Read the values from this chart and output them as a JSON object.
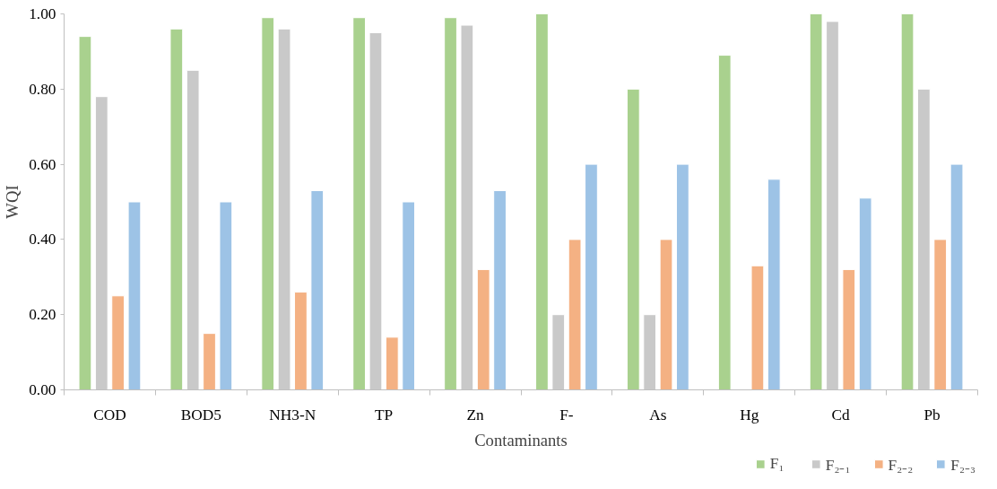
{
  "chart_data": {
    "type": "bar",
    "xlabel": "Contaminants",
    "ylabel": "WQI",
    "categories": [
      "COD",
      "BOD5",
      "NH3-N",
      "TP",
      "Zn",
      "F-",
      "As",
      "Hg",
      "Cd",
      "Pb"
    ],
    "series": [
      {
        "name": "F₁",
        "color": "#a9d18e",
        "values": [
          0.94,
          0.96,
          0.99,
          0.99,
          0.99,
          1.0,
          0.8,
          0.89,
          1.0,
          1.0
        ]
      },
      {
        "name": "F₂₋₁",
        "color": "#c9c9c9",
        "values": [
          0.78,
          0.85,
          0.96,
          0.95,
          0.97,
          0.2,
          0.2,
          null,
          0.98,
          0.8
        ]
      },
      {
        "name": "F₂₋₂",
        "color": "#f4b183",
        "values": [
          0.25,
          0.15,
          0.26,
          0.14,
          0.32,
          0.4,
          0.4,
          0.33,
          0.32,
          0.4
        ]
      },
      {
        "name": "F₂₋₃",
        "color": "#9dc3e6",
        "values": [
          0.5,
          0.5,
          0.53,
          0.5,
          0.53,
          0.6,
          0.6,
          0.56,
          0.51,
          0.6
        ]
      }
    ],
    "ylim": [
      0,
      1
    ],
    "yticks": [
      {
        "value": 0,
        "label": "0.00"
      },
      {
        "value": 0.2,
        "label": "0.20"
      },
      {
        "value": 0.4,
        "label": "0.40"
      },
      {
        "value": 0.6,
        "label": "0.60"
      },
      {
        "value": 0.8,
        "label": "0.80"
      },
      {
        "value": 1,
        "label": "1.00"
      }
    ],
    "grid": false,
    "legend": "bottom right"
  }
}
